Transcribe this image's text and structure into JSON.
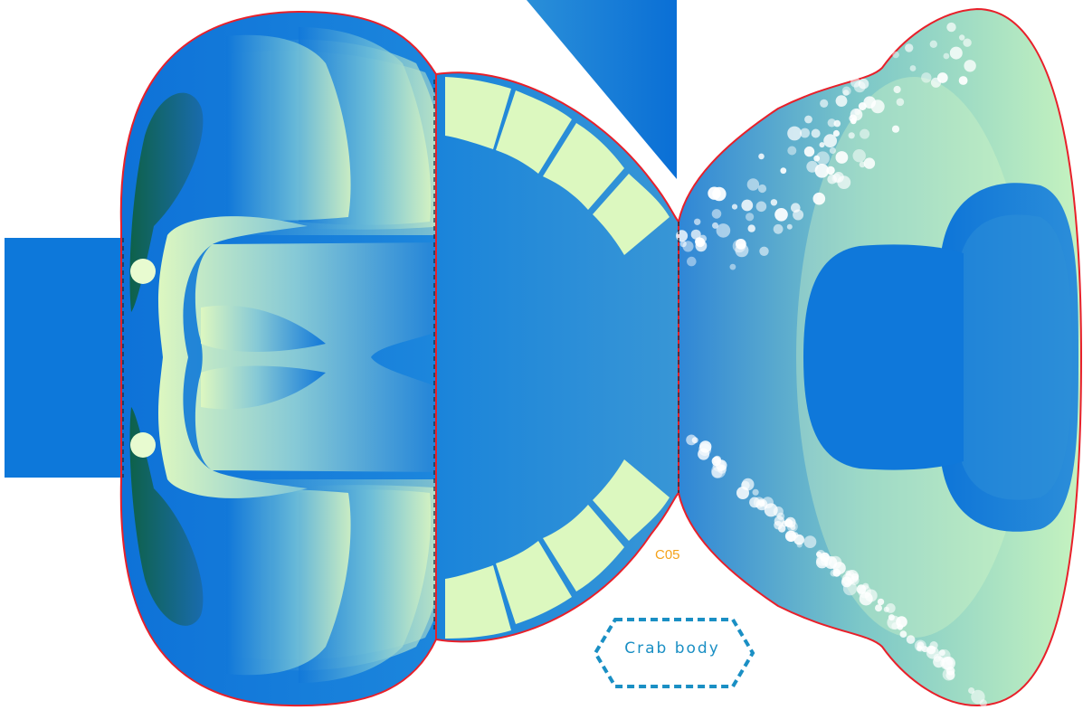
{
  "part_code": "C05",
  "part_name": "Crab body",
  "colors": {
    "primary_blue": "#0d7ad9",
    "mid_blue": "#2a8fdc",
    "pale_green": "#dff9c2",
    "light_green": "#bdf1b8",
    "dark_green": "#0e5f3a",
    "cut_line": "#e8202a",
    "label_orange": "#f5a21b",
    "badge_blue": "#1a8fc4",
    "spot_white": "#ffffff"
  }
}
